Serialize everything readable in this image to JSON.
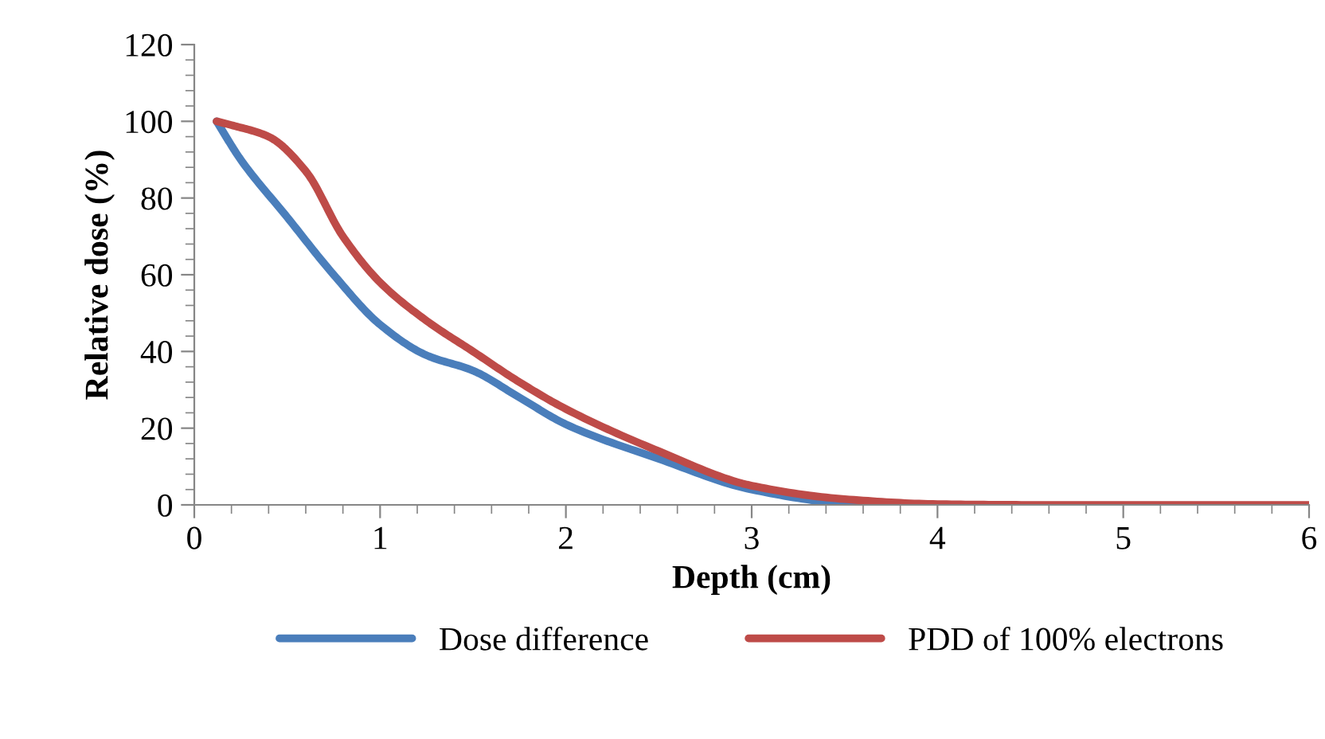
{
  "chart_data": {
    "type": "line",
    "xlabel": "Depth (cm)",
    "ylabel": "Relative dose (%)",
    "xlim": [
      0,
      6
    ],
    "xticks": [
      0,
      1,
      2,
      3,
      4,
      5,
      6
    ],
    "ylim": [
      0,
      120
    ],
    "yticks": [
      0,
      20,
      40,
      60,
      80,
      100,
      120
    ],
    "grid": false,
    "legend": "bottom",
    "marker": "none",
    "line_style": "solid",
    "series": [
      {
        "name": "Dose difference",
        "color": "#4a7ebb",
        "x": [
          0.12,
          0.25,
          0.5,
          0.75,
          1.0,
          1.25,
          1.5,
          1.75,
          2.0,
          2.5,
          3.0,
          3.5,
          4.0
        ],
        "values": [
          100,
          90,
          75,
          60,
          47,
          39,
          35,
          28,
          21,
          12,
          4,
          0.5,
          0
        ]
      },
      {
        "name": "PDD of 100% electrons",
        "color": "#be4b48",
        "x": [
          0.12,
          0.2,
          0.4,
          0.6,
          0.8,
          1.0,
          1.25,
          1.5,
          1.75,
          2.0,
          2.5,
          3.0,
          3.5,
          4.0,
          4.5,
          5.0,
          5.5,
          6.0
        ],
        "values": [
          100,
          99,
          96,
          87,
          70,
          58,
          48,
          40,
          32,
          25,
          14,
          5,
          1.5,
          0.2,
          0,
          0,
          0,
          0
        ]
      }
    ]
  }
}
